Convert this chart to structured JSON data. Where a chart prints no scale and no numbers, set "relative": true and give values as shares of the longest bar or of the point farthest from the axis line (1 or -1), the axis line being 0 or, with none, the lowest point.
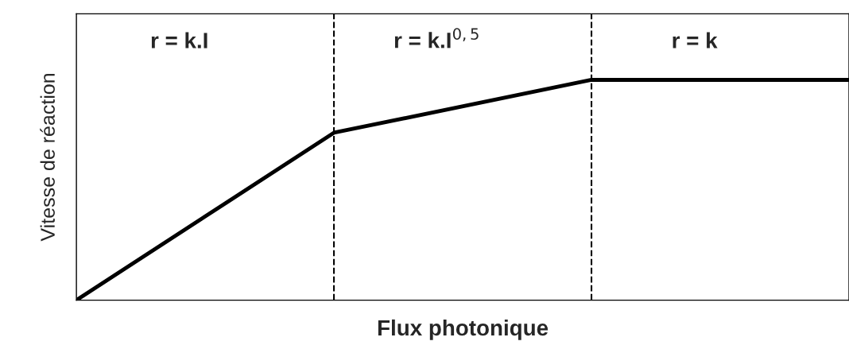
{
  "chart_data": {
    "type": "line",
    "relative": true,
    "xlabel": "Flux photonique",
    "ylabel": "Vitesse de réaction",
    "categories": [
      null,
      null,
      null,
      null
    ],
    "series": [
      {
        "color": "#000000",
        "values": [
          0,
          0.76,
          1,
          1
        ]
      }
    ],
    "annotations": [
      "r = k.I",
      "r = k.I$^{0,5}$",
      "r = k"
    ],
    "marker": "none",
    "line_style": "solid",
    "grid": false,
    "legend": false
  }
}
